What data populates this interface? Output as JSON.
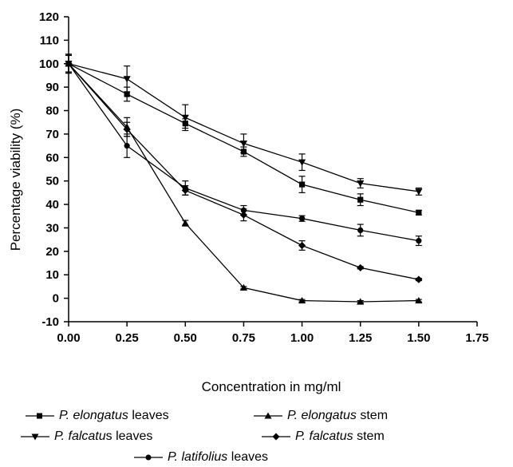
{
  "chart_data": {
    "type": "line",
    "xlabel": "Concentration in mg/ml",
    "ylabel": "Percentage viability (%)",
    "xlim": [
      0,
      1.75
    ],
    "ylim": [
      -10,
      120
    ],
    "x_ticks": [
      "0.00",
      "0.25",
      "0.50",
      "0.75",
      "1.00",
      "1.25",
      "1.50",
      "1.75"
    ],
    "y_ticks": [
      "-10",
      "0",
      "10",
      "20",
      "30",
      "40",
      "50",
      "60",
      "70",
      "80",
      "90",
      "100",
      "110",
      "120"
    ],
    "grid": false,
    "legend_position": "bottom",
    "x": [
      0,
      0.25,
      0.5,
      0.75,
      1.0,
      1.25,
      1.5
    ],
    "series": [
      {
        "name": "P. elongatus leaves",
        "marker": "square",
        "values": [
          100,
          87,
          74.5,
          62.5,
          48.5,
          42,
          36.5
        ],
        "errors": [
          4,
          3,
          2,
          2,
          3.5,
          2.5,
          1
        ]
      },
      {
        "name": "P. elongatus stem",
        "marker": "triangle-up",
        "values": [
          100,
          73,
          32,
          4.5,
          -1,
          -1.5,
          -1
        ],
        "errors": [
          3.5,
          4,
          1.2,
          0.5,
          0.5,
          0.5,
          0.5
        ]
      },
      {
        "name": "P. falcatus leaves",
        "marker": "triangle-down",
        "values": [
          100,
          93.5,
          77,
          66,
          58,
          49,
          45.5
        ],
        "errors": [
          4,
          5.5,
          5.5,
          4,
          3.5,
          2,
          1.5
        ]
      },
      {
        "name": "P. falcatus stem",
        "marker": "diamond",
        "values": [
          100,
          72,
          46,
          35.5,
          22.5,
          13,
          8
        ],
        "errors": [
          4,
          3,
          2,
          2.5,
          2,
          0.5,
          0.5
        ]
      },
      {
        "name": "P. latifolius leaves",
        "marker": "circle",
        "values": [
          100,
          65,
          47,
          37.5,
          34,
          29,
          24.5
        ],
        "errors": [
          4,
          5,
          3,
          2,
          1.2,
          2.5,
          2
        ]
      }
    ]
  },
  "legend": {
    "items": [
      {
        "species": "P. elongatus",
        "part": "leaves",
        "species_suffix": "",
        "marker": "square"
      },
      {
        "species": "P. elongatus",
        "part": "stem",
        "species_suffix": "",
        "marker": "triangle-up"
      },
      {
        "species": "P. falcatu",
        "part": "leaves",
        "species_suffix": "s",
        "marker": "triangle-down"
      },
      {
        "species": "P. falcatus",
        "part": "stem",
        "species_suffix": "",
        "marker": "diamond"
      },
      {
        "species": "P. latifolius",
        "part": "leaves",
        "species_suffix": "",
        "marker": "circle"
      }
    ]
  }
}
